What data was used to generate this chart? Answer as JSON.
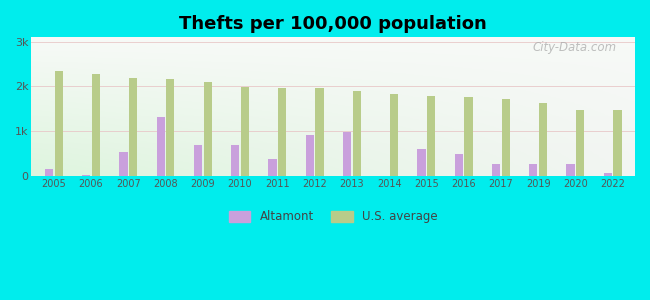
{
  "title": "Thefts per 100,000 population",
  "years": [
    2005,
    2006,
    2007,
    2008,
    2009,
    2010,
    2011,
    2012,
    2013,
    2014,
    2015,
    2016,
    2017,
    2019,
    2020,
    2022
  ],
  "altamont": [
    150,
    30,
    530,
    1310,
    680,
    680,
    370,
    920,
    990,
    0,
    600,
    490,
    270,
    270,
    270,
    70
  ],
  "us_average": [
    2340,
    2270,
    2190,
    2170,
    2090,
    1990,
    1960,
    1960,
    1900,
    1830,
    1780,
    1760,
    1720,
    1620,
    1480,
    1470
  ],
  "altamont_color": "#c9a0dc",
  "us_avg_color": "#b8cc8a",
  "background_outer": "#00eded",
  "yticks": [
    0,
    1000,
    2000,
    3000
  ],
  "ytick_labels": [
    "0",
    "1k",
    "2k",
    "3k"
  ],
  "ylim": [
    0,
    3100
  ],
  "title_fontsize": 13,
  "watermark": "City-Data.com",
  "legend_labels": [
    "Altamont",
    "U.S. average"
  ]
}
